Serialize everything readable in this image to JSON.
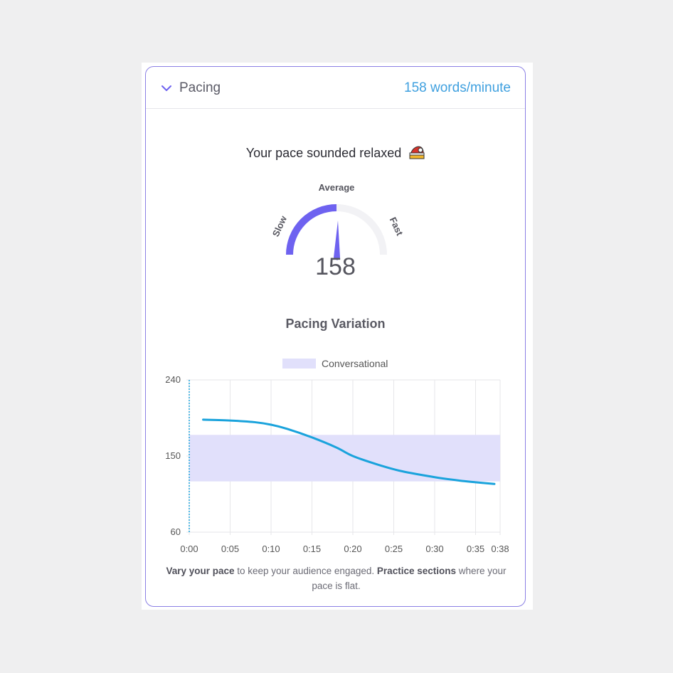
{
  "header": {
    "title": "Pacing",
    "value": "158 words/minute"
  },
  "summary": {
    "headline": "Your pace sounded relaxed",
    "emoji": "sleeping-cap-emoji"
  },
  "gauge": {
    "label_slow": "Slow",
    "label_average": "Average",
    "label_fast": "Fast",
    "value": "158",
    "fill_fraction": 0.5,
    "fill_color": "#6e62f0",
    "track_color": "#f2f2f5"
  },
  "variation": {
    "title": "Pacing Variation"
  },
  "chart_data": {
    "type": "line",
    "legend": [
      {
        "name": "Conversational",
        "color": "#e1e0fb"
      }
    ],
    "band": {
      "low": 120,
      "high": 175,
      "color": "#e1e0fb"
    },
    "ylim": [
      60,
      240
    ],
    "yticks": [
      "240",
      "150",
      "60"
    ],
    "ytick_values": [
      240,
      150,
      60
    ],
    "xlim": [
      0,
      38
    ],
    "xticks": [
      "0:00",
      "0:05",
      "0:10",
      "0:15",
      "0:20",
      "0:25",
      "0:30",
      "0:35",
      "0:38"
    ],
    "xtick_values": [
      0,
      5,
      10,
      15,
      20,
      25,
      30,
      35,
      38
    ],
    "series": [
      {
        "color": "#1aa3dc",
        "x": [
          1.7,
          5,
          8,
          10,
          12,
          15,
          18,
          20,
          23,
          26,
          30,
          33,
          35,
          37.3
        ],
        "y": [
          193,
          192,
          190,
          187,
          182,
          172,
          160,
          150,
          140,
          132,
          125,
          121,
          119,
          117
        ]
      }
    ]
  },
  "footnote": {
    "strong1": "Vary your pace",
    "text1": " to keep your audience engaged. ",
    "strong2": "Practice sections",
    "text2": " where your pace is flat."
  }
}
